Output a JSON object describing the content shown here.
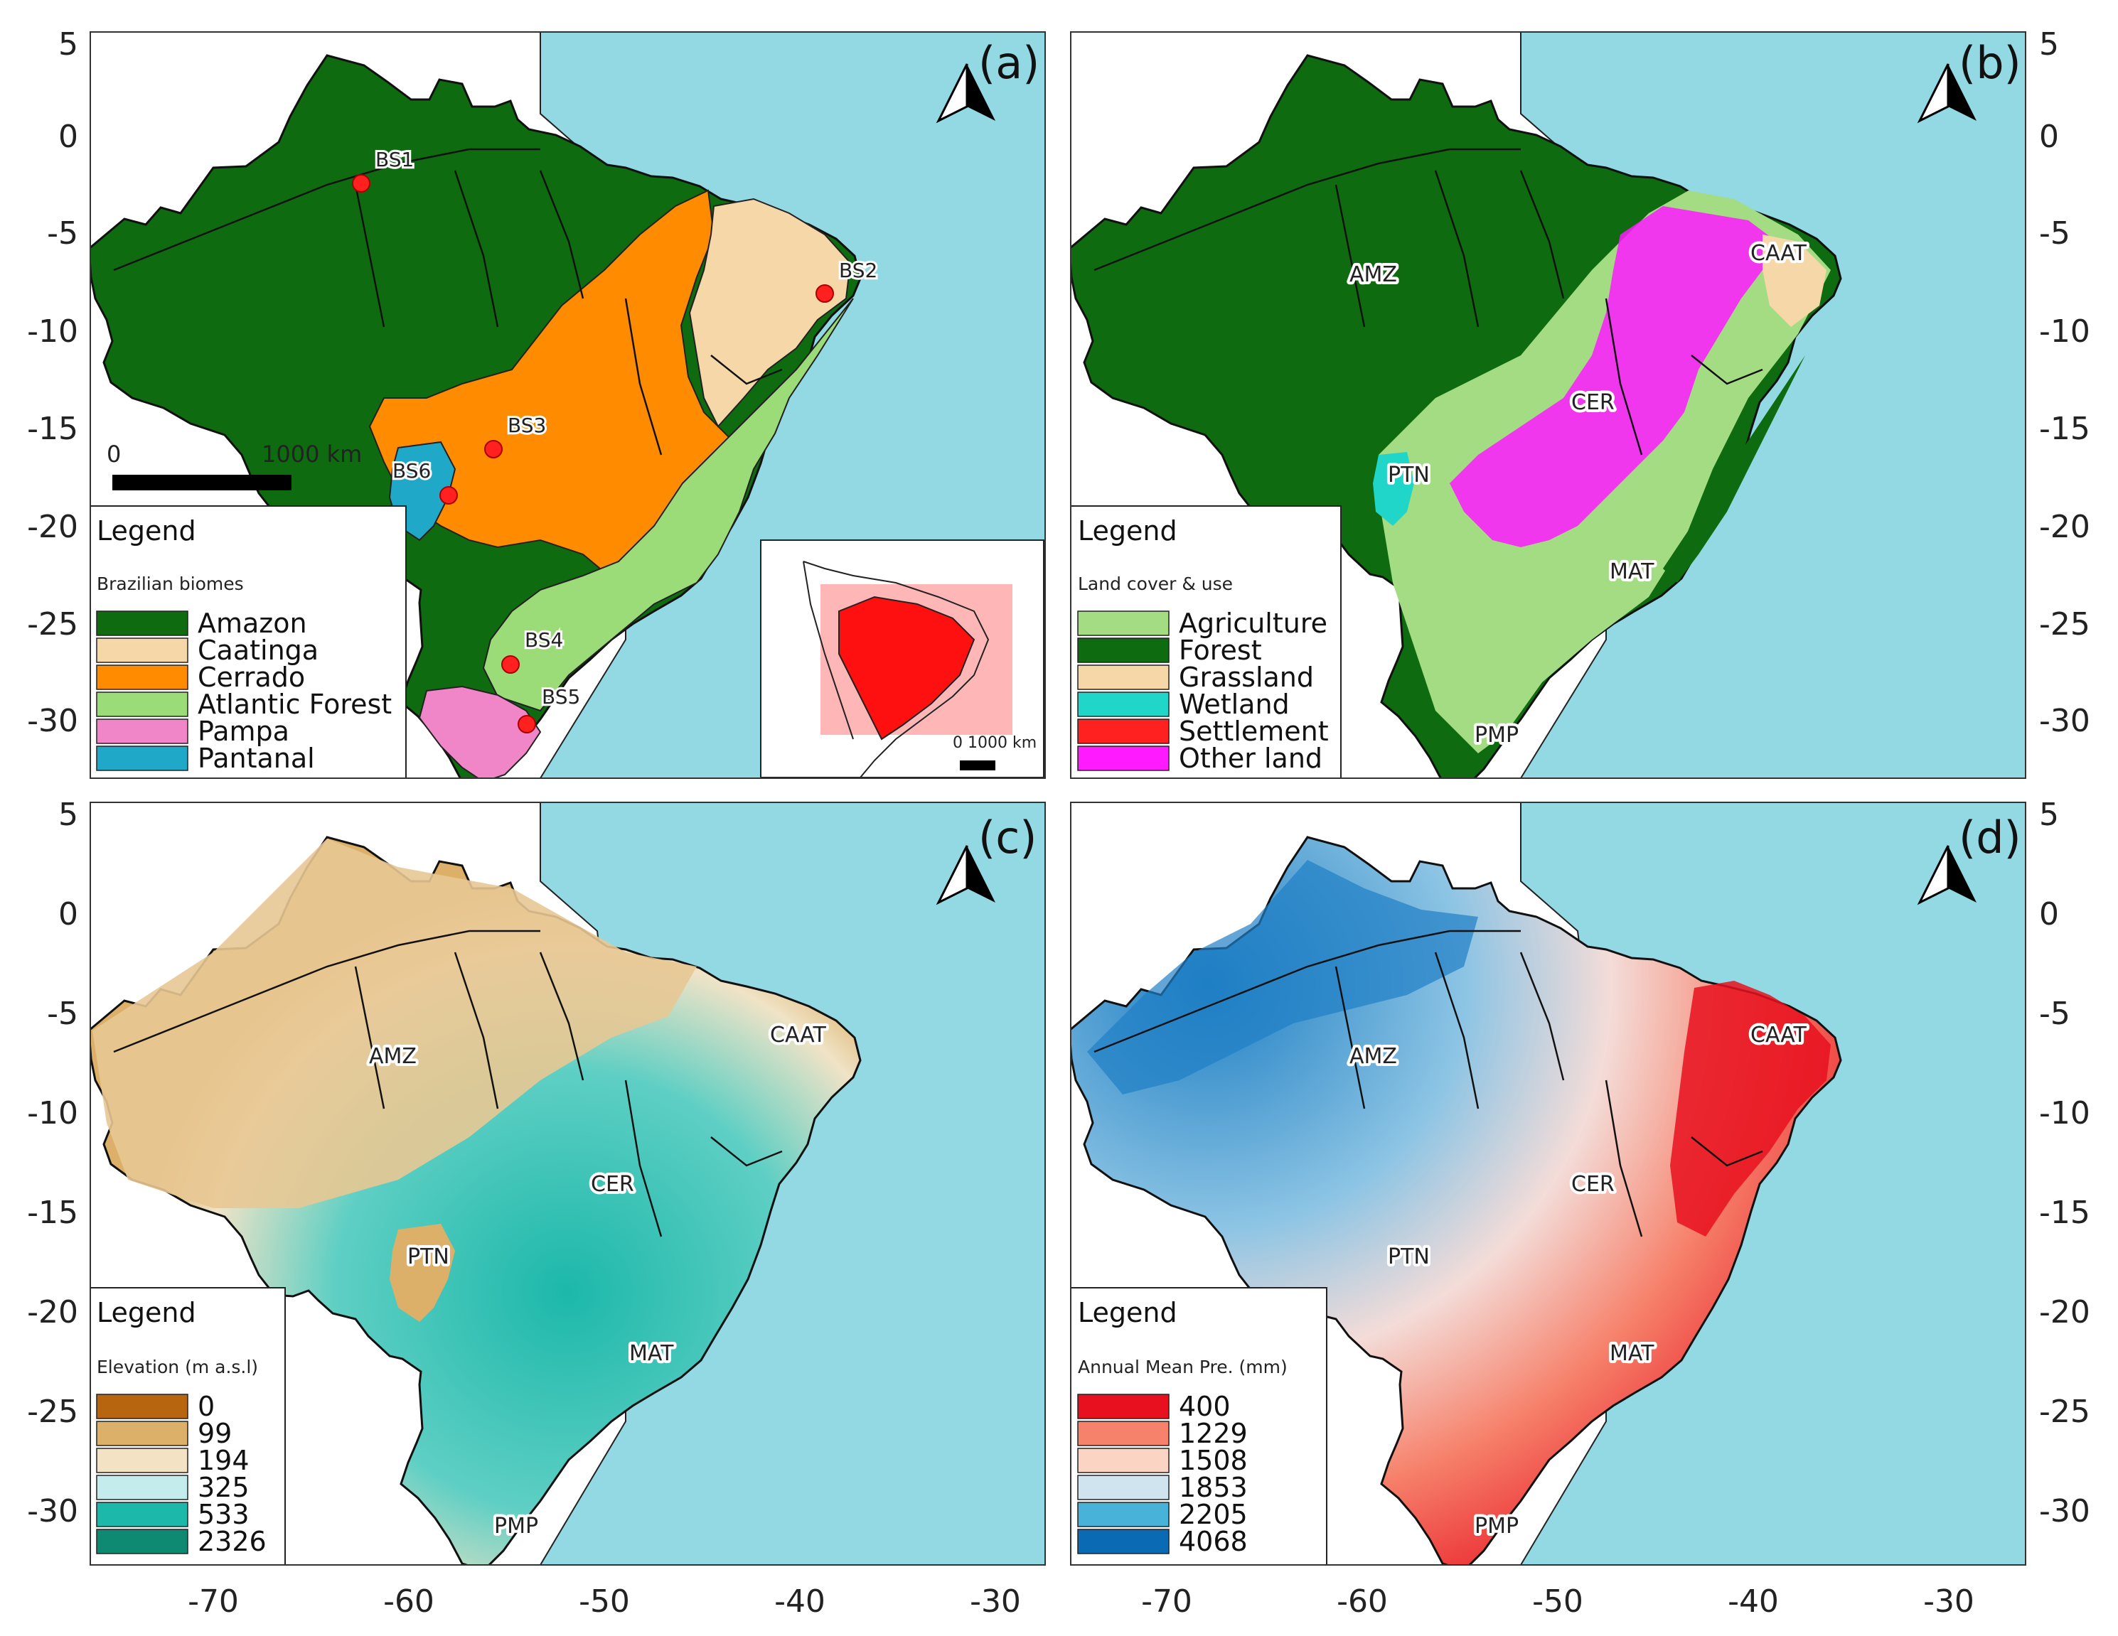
{
  "figure": {
    "axes": {
      "x_ticks": [
        "-70",
        "-60",
        "-50",
        "-40",
        "-30"
      ],
      "y_ticks": [
        "5",
        "0",
        "-5",
        "-10",
        "-15",
        "-20",
        "-25",
        "-30"
      ]
    },
    "colors": {
      "ocean": "#93d9e3",
      "land_other": "#ffffff",
      "river": "#111111"
    },
    "panels": [
      {
        "id": "a",
        "label": "(a)",
        "legend_title": "Legend",
        "legend_subtitle": "Brazilian biomes",
        "legend": [
          {
            "label": "Amazon",
            "color": "#0f6b0f"
          },
          {
            "label": "Caatinga",
            "color": "#f5d7a8"
          },
          {
            "label": "Cerrado",
            "color": "#ff8c00"
          },
          {
            "label": "Atlantic Forest",
            "color": "#9bdc78"
          },
          {
            "label": "Pampa",
            "color": "#f086c8"
          },
          {
            "label": "Pantanal",
            "color": "#1fa8c8"
          }
        ],
        "sites": [
          "BS1",
          "BS2",
          "BS3",
          "BS4",
          "BS5",
          "BS6"
        ],
        "scale_bar": {
          "start": "0",
          "end": "1000 km"
        },
        "inset": {
          "scale_label": "0  1000 km"
        }
      },
      {
        "id": "b",
        "label": "(b)",
        "legend_title": "Legend",
        "legend_subtitle": "Land cover & use",
        "legend": [
          {
            "label": "Agriculture",
            "color": "#a4dc84"
          },
          {
            "label": "Forest",
            "color": "#0f6b0f"
          },
          {
            "label": "Grassland",
            "color": "#f5d7a8"
          },
          {
            "label": "Wetland",
            "color": "#1fd6c8"
          },
          {
            "label": "Settlement",
            "color": "#ff2020"
          },
          {
            "label": "Other land",
            "color": "#ff1aff"
          }
        ],
        "regions": [
          "AMZ",
          "CAAT",
          "CER",
          "PTN",
          "MAT",
          "PMP"
        ]
      },
      {
        "id": "c",
        "label": "(c)",
        "legend_title": "Legend",
        "legend_subtitle": "Elevation (m a.s.l)",
        "legend": [
          {
            "label": "0",
            "color": "#b8650f"
          },
          {
            "label": "99",
            "color": "#dcb068"
          },
          {
            "label": "194",
            "color": "#f3e2c4"
          },
          {
            "label": "325",
            "color": "#c4ecec"
          },
          {
            "label": "533",
            "color": "#1cb8aa"
          },
          {
            "label": "2326",
            "color": "#0f8a72"
          }
        ],
        "regions": [
          "AMZ",
          "CAAT",
          "CER",
          "PTN",
          "MAT",
          "PMP"
        ]
      },
      {
        "id": "d",
        "label": "(d)",
        "legend_title": "Legend",
        "legend_subtitle": "Annual Mean Pre. (mm)",
        "legend": [
          {
            "label": "400",
            "color": "#e8101e"
          },
          {
            "label": "1229",
            "color": "#f6826c"
          },
          {
            "label": "1508",
            "color": "#fcd4c4"
          },
          {
            "label": "1853",
            "color": "#d0e4f0"
          },
          {
            "label": "2205",
            "color": "#48b2d8"
          },
          {
            "label": "4068",
            "color": "#0a6ab4"
          }
        ],
        "regions": [
          "AMZ",
          "CAAT",
          "CER",
          "PTN",
          "MAT",
          "PMP"
        ]
      }
    ]
  }
}
